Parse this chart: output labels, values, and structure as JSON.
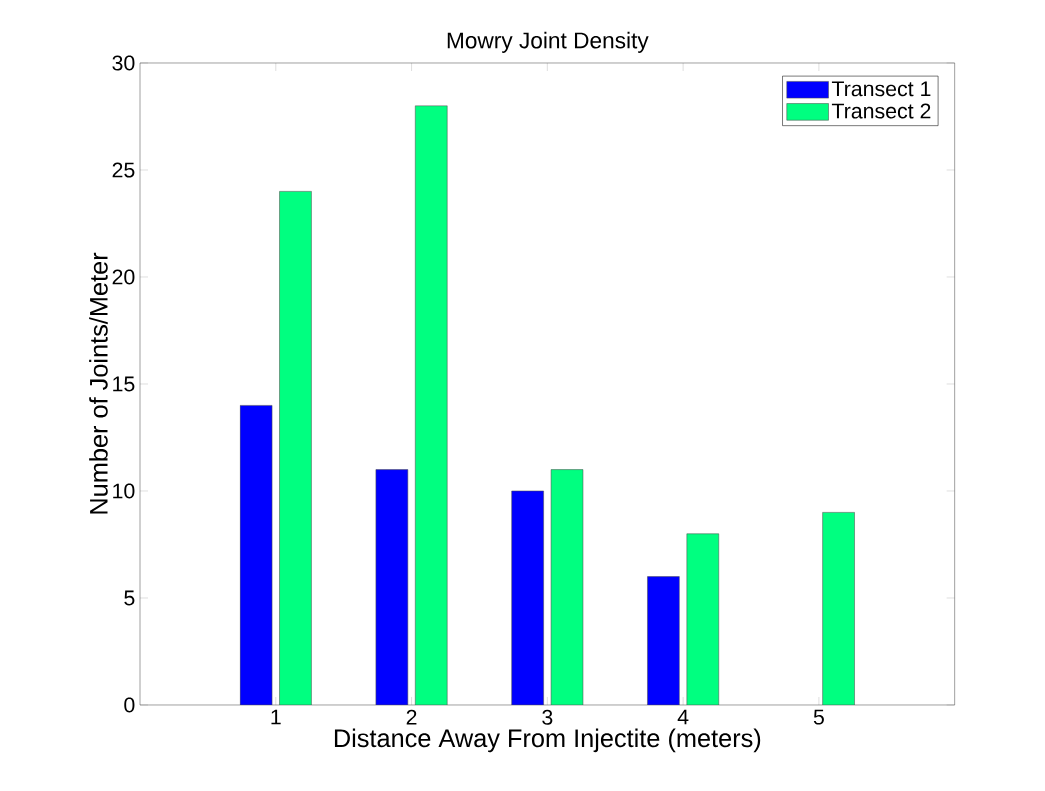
{
  "chart_data": {
    "type": "bar",
    "title": "Mowry Joint Density",
    "xlabel": "Distance Away From Injectite (meters)",
    "ylabel": "Number of Joints/Meter",
    "x": [
      1,
      2,
      3,
      4,
      5
    ],
    "series": [
      {
        "name": "Transect 1",
        "color": "#0000ff",
        "values": [
          14,
          11,
          10,
          6,
          null
        ]
      },
      {
        "name": "Transect 2",
        "color": "#00ff80",
        "values": [
          24,
          28,
          11,
          8,
          9
        ]
      }
    ],
    "xlim": [
      0,
      6
    ],
    "xticks": [
      1,
      2,
      3,
      4,
      5
    ],
    "ylim": [
      0,
      30
    ],
    "yticks": [
      0,
      5,
      10,
      15,
      20,
      25,
      30
    ],
    "legend": "top right",
    "grid": false
  }
}
